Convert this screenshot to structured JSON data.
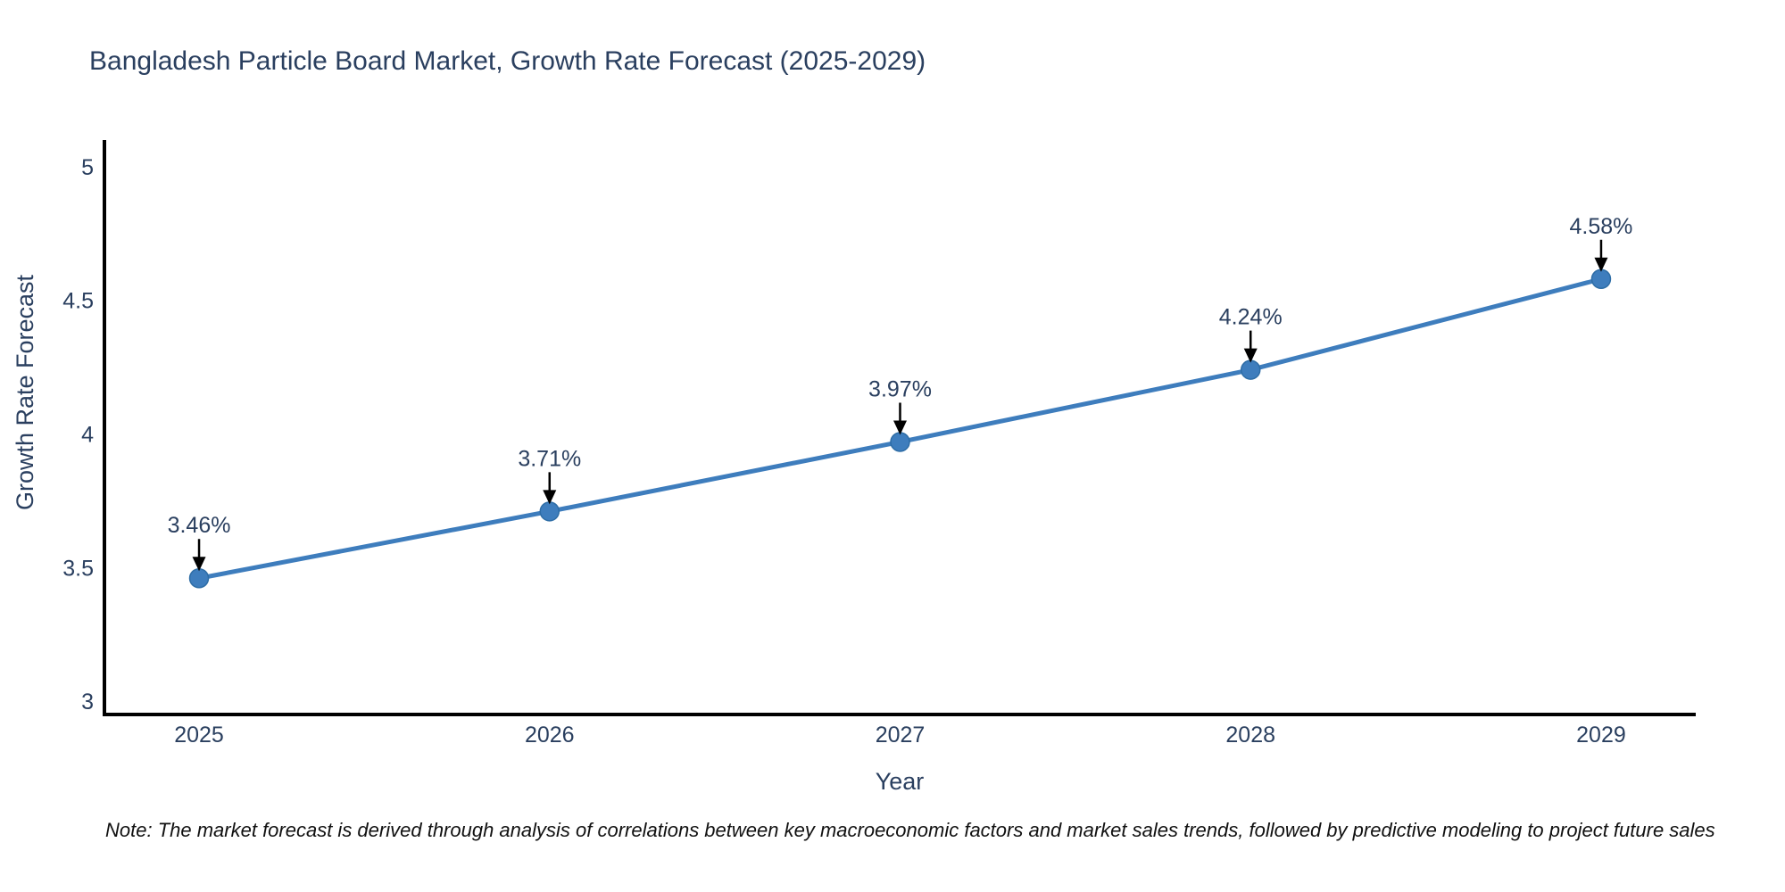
{
  "note": "Note: The market forecast is derived through analysis of correlations between key macroeconomic factors and market sales trends, followed by predictive modeling to project future sales",
  "chart_data": {
    "type": "line",
    "title": "Bangladesh Particle Board Market, Growth Rate Forecast (2025-2029)",
    "xlabel": "Year",
    "ylabel": "Growth Rate Forecast",
    "x": [
      2025,
      2026,
      2027,
      2028,
      2029
    ],
    "values": [
      3.46,
      3.71,
      3.97,
      4.24,
      4.58
    ],
    "point_labels": [
      "3.46%",
      "3.71%",
      "3.97%",
      "4.24%",
      "4.58%"
    ],
    "series_name": "Growth Rate Forecast",
    "xticks": {
      "values": [
        2025,
        2026,
        2027,
        2028,
        2029
      ],
      "labels": [
        "2025",
        "2026",
        "2027",
        "2028",
        "2029"
      ]
    },
    "yticks": {
      "values": [
        3,
        3.5,
        4,
        4.5,
        5
      ],
      "labels": [
        "3",
        "3.5",
        "4",
        "4.5",
        "5"
      ]
    },
    "xlim": [
      2024.73,
      2029.27
    ],
    "ylim": [
      2.95,
      5.1
    ],
    "grid": false,
    "legend": "none",
    "annotations_above_points": true,
    "colors": {
      "line": "#3e7dbd",
      "marker": "#3e7dbd",
      "marker_edge": "#2e6da6",
      "axis": "#000000",
      "arrow": "#000000",
      "chart_text": "#2a3f5f",
      "note_text": "#111111",
      "background": "#ffffff"
    }
  }
}
